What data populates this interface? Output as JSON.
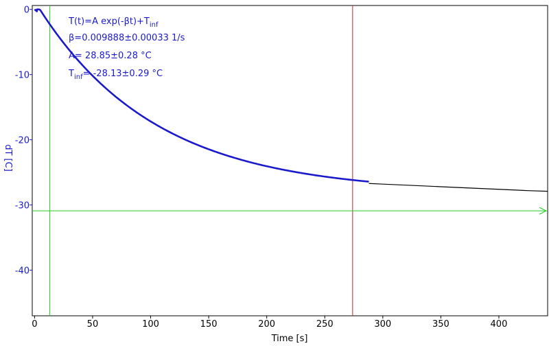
{
  "chart_data": {
    "type": "line",
    "xlabel": "Time [s]",
    "ylabel": "dT [C]",
    "xlim": [
      -2,
      442
    ],
    "ylim": [
      -47,
      0.6
    ],
    "x_ticks": [
      0,
      50,
      100,
      150,
      200,
      250,
      300,
      350,
      400
    ],
    "y_ticks": [
      0,
      -10,
      -20,
      -30,
      -40
    ],
    "fit": {
      "model": "T(t)=A exp(-βt)+T_inf",
      "A": 28.85,
      "beta": 0.009888,
      "T_inf": -28.13,
      "t0": 2,
      "fitted_range": [
        2,
        288
      ],
      "full_range": [
        0,
        442
      ]
    },
    "series": [
      {
        "color": "#1a1acc",
        "x": [
          0,
          2,
          10,
          20,
          30,
          40,
          50,
          75,
          100,
          125,
          150,
          175,
          200,
          225,
          250,
          275,
          288
        ],
        "y": [
          0,
          -0.3,
          -2.3,
          -4.9,
          -7.3,
          -9.5,
          -11.5,
          -15.9,
          -19.3,
          -21.7,
          -23.2,
          -24.4,
          -25.1,
          -25.7,
          -26.1,
          -26.5,
          -26.7
        ]
      },
      {
        "color": "#000000",
        "x": [
          288,
          300,
          325,
          350,
          375,
          400,
          425,
          442
        ],
        "y": [
          -26.7,
          -26.8,
          -27.0,
          -27.2,
          -27.4,
          -27.6,
          -27.8,
          -27.9
        ]
      }
    ],
    "markers": {
      "vertical_green_x": 13,
      "vertical_red_x": 274,
      "horizontal_green_y": -30.9
    },
    "colors": {
      "fit": "#1a1acc",
      "data": "#000000",
      "green_marker": "#22cc22",
      "red_marker": "#cc2222"
    }
  },
  "annotations": {
    "formula_main": "T(t)=A exp(-βt)+T",
    "formula_sub": "inf",
    "beta_text": "β=0.009888±0.00033 1/s",
    "a_text": "A= 28.85±0.28 °C",
    "tinf_main": "T",
    "tinf_sub": "inf",
    "tinf_value": "= -28.13±0.29 °C"
  }
}
